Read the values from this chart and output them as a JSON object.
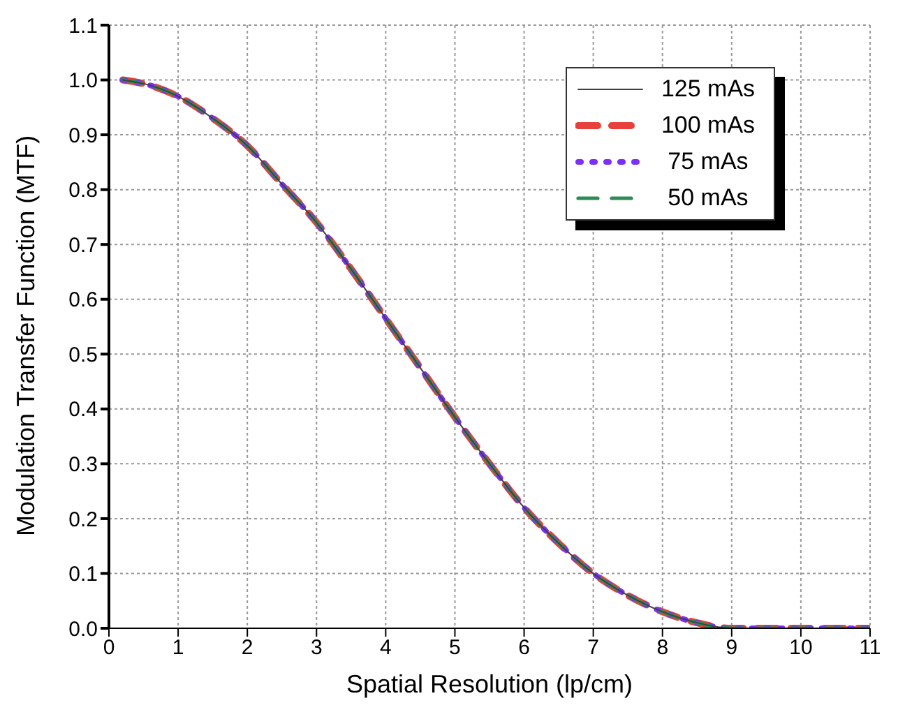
{
  "chart_data": {
    "type": "line",
    "xlabel": "Spatial Resolution (lp/cm)",
    "ylabel": "Modulation Transfer Function (MTF)",
    "x": [
      0.2,
      0.6,
      1,
      1.5,
      2,
      2.5,
      3,
      3.5,
      4,
      4.5,
      5,
      5.5,
      6,
      6.5,
      7,
      7.5,
      8,
      8.5,
      9,
      9.5,
      10,
      10.5,
      11
    ],
    "series": [
      {
        "name": "125 mAs",
        "color": "#404040",
        "line_style": "solid",
        "values": [
          1.0,
          0.99,
          0.97,
          0.93,
          0.88,
          0.81,
          0.74,
          0.655,
          0.565,
          0.475,
          0.385,
          0.3,
          0.22,
          0.155,
          0.1,
          0.06,
          0.03,
          0.01,
          0.0,
          0.0,
          0.0,
          0.0,
          0.0
        ]
      },
      {
        "name": "100 mAs",
        "color": "#e8413c",
        "line_style": "dashed",
        "values": [
          1.0,
          0.99,
          0.97,
          0.93,
          0.88,
          0.81,
          0.74,
          0.655,
          0.565,
          0.475,
          0.385,
          0.3,
          0.22,
          0.155,
          0.1,
          0.06,
          0.03,
          0.01,
          0.0,
          0.0,
          0.0,
          0.0,
          0.0
        ]
      },
      {
        "name": "75 mAs",
        "color": "#7b2ff7",
        "line_style": "dotted",
        "values": [
          1.0,
          0.99,
          0.97,
          0.93,
          0.88,
          0.81,
          0.74,
          0.655,
          0.565,
          0.475,
          0.385,
          0.3,
          0.22,
          0.155,
          0.1,
          0.06,
          0.03,
          0.01,
          0.0,
          0.0,
          0.0,
          0.0,
          0.0
        ]
      },
      {
        "name": "50 mAs",
        "color": "#2e8b57",
        "line_style": "dashed",
        "values": [
          1.0,
          0.99,
          0.97,
          0.93,
          0.88,
          0.81,
          0.74,
          0.655,
          0.565,
          0.475,
          0.385,
          0.3,
          0.22,
          0.155,
          0.1,
          0.06,
          0.03,
          0.01,
          0.0,
          0.0,
          0.0,
          0.0,
          0.0
        ]
      }
    ],
    "xlim": [
      0,
      11
    ],
    "xticks": [
      0,
      1,
      2,
      3,
      4,
      5,
      6,
      7,
      8,
      9,
      10,
      11
    ],
    "ylim": [
      0,
      1.1
    ],
    "yticks": [
      {
        "value": 0,
        "label": "0.0"
      },
      0.1,
      0.2,
      0.3,
      0.4,
      0.5,
      0.6,
      0.7,
      0.8,
      0.9,
      {
        "value": 1,
        "label": "1.0"
      },
      1.1
    ],
    "grid": true,
    "legend": "top right",
    "marker": "none"
  }
}
